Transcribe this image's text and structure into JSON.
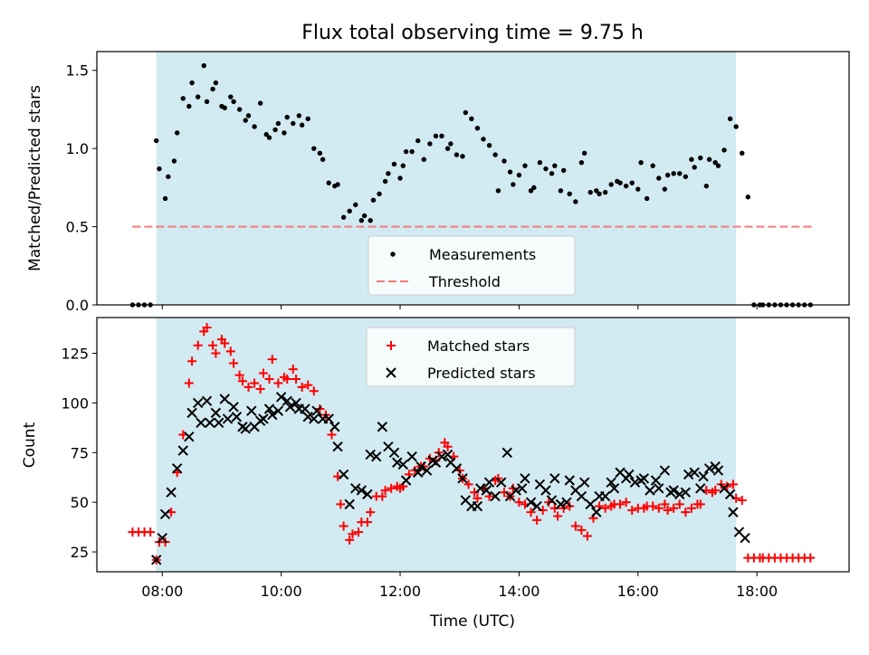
{
  "figure_title": "Flux total observing time = 9.75 h",
  "colors": {
    "shade": "#add8e6",
    "threshold": "#f08080",
    "measurements": "#000000",
    "matched": "#ff0000",
    "predicted": "#000000"
  },
  "chart_data": [
    {
      "type": "scatter",
      "title": "Flux total observing time = 9.75 h",
      "xlabel": "",
      "ylabel": "Matched/Predicted stars",
      "xlim": [
        6.9,
        19.55
      ],
      "ylim": [
        0.0,
        1.62
      ],
      "yticks": [
        0.0,
        0.5,
        1.0,
        1.5
      ],
      "ytick_labels": [
        "0.0",
        "0.5",
        "1.0",
        "1.5"
      ],
      "shaded_span": [
        7.9,
        17.65
      ],
      "threshold": {
        "name": "Threshold",
        "y": 0.5,
        "x": [
          7.5,
          18.95
        ]
      },
      "legend": {
        "placement": "lower center",
        "entries": [
          "Measurements",
          "Threshold"
        ]
      },
      "series": [
        {
          "name": "Measurements",
          "marker": "dot",
          "x": [
            7.5,
            7.6,
            7.7,
            7.8,
            7.9,
            7.95,
            8.05,
            8.1,
            8.2,
            8.25,
            8.35,
            8.45,
            8.5,
            8.6,
            8.7,
            8.75,
            8.85,
            8.9,
            9.0,
            9.05,
            9.15,
            9.2,
            9.3,
            9.4,
            9.45,
            9.55,
            9.65,
            9.75,
            9.8,
            9.9,
            9.95,
            10.05,
            10.1,
            10.2,
            10.3,
            10.35,
            10.45,
            10.55,
            10.65,
            10.7,
            10.8,
            10.9,
            10.95,
            11.05,
            11.15,
            11.25,
            11.35,
            11.4,
            11.5,
            11.55,
            11.65,
            11.75,
            11.8,
            11.9,
            12.0,
            12.05,
            12.1,
            12.2,
            12.3,
            12.4,
            12.5,
            12.6,
            12.7,
            12.8,
            12.85,
            12.95,
            13.05,
            13.1,
            13.2,
            13.3,
            13.4,
            13.5,
            13.6,
            13.65,
            13.75,
            13.85,
            13.9,
            14.0,
            14.1,
            14.2,
            14.25,
            14.35,
            14.45,
            14.55,
            14.6,
            14.7,
            14.75,
            14.85,
            14.95,
            15.05,
            15.1,
            15.2,
            15.3,
            15.35,
            15.45,
            15.55,
            15.65,
            15.7,
            15.8,
            15.9,
            16.0,
            16.05,
            16.15,
            16.25,
            16.35,
            16.45,
            16.5,
            16.6,
            16.7,
            16.8,
            16.9,
            16.95,
            17.05,
            17.15,
            17.2,
            17.3,
            17.35,
            17.45,
            17.55,
            17.65,
            17.75,
            17.85,
            17.95,
            18.05,
            18.1,
            18.2,
            18.3,
            18.4,
            18.5,
            18.6,
            18.7,
            18.8,
            18.9
          ],
          "y": [
            0,
            0,
            0,
            0,
            1.05,
            0.87,
            0.68,
            0.82,
            0.92,
            1.1,
            1.32,
            1.27,
            1.42,
            1.33,
            1.53,
            1.3,
            1.38,
            1.42,
            1.27,
            1.26,
            1.33,
            1.3,
            1.25,
            1.18,
            1.21,
            1.14,
            1.29,
            1.09,
            1.07,
            1.12,
            1.16,
            1.1,
            1.2,
            1.16,
            1.21,
            1.15,
            1.19,
            1.0,
            0.97,
            0.93,
            0.78,
            0.76,
            0.77,
            0.56,
            0.6,
            0.64,
            0.54,
            0.57,
            0.54,
            0.67,
            0.71,
            0.79,
            0.84,
            0.9,
            0.81,
            0.89,
            0.98,
            0.98,
            1.05,
            0.93,
            1.03,
            1.08,
            1.08,
            1.0,
            1.03,
            0.96,
            0.95,
            1.23,
            1.19,
            1.13,
            1.06,
            1.02,
            0.96,
            0.73,
            0.92,
            0.85,
            0.77,
            0.83,
            0.89,
            0.73,
            0.75,
            0.91,
            0.87,
            0.84,
            0.89,
            0.73,
            0.86,
            0.71,
            0.66,
            0.91,
            0.97,
            0.72,
            0.73,
            0.71,
            0.72,
            0.77,
            0.79,
            0.78,
            0.76,
            0.78,
            0.74,
            0.91,
            0.68,
            0.89,
            0.81,
            0.74,
            0.83,
            0.84,
            0.84,
            0.82,
            0.93,
            0.88,
            0.94,
            0.76,
            0.93,
            0.91,
            0.89,
            0.99,
            1.19,
            1.14,
            0.97,
            0.69,
            0,
            0,
            0,
            0,
            0,
            0,
            0,
            0,
            0,
            0,
            0
          ]
        }
      ]
    },
    {
      "type": "scatter",
      "title": "",
      "xlabel": "Time (UTC)",
      "ylabel": "Count",
      "xlim": [
        6.9,
        19.55
      ],
      "ylim": [
        15,
        143
      ],
      "xticks": [
        8,
        10,
        12,
        14,
        16,
        18
      ],
      "xtick_labels": [
        "08:00",
        "10:00",
        "12:00",
        "14:00",
        "16:00",
        "18:00"
      ],
      "yticks": [
        25,
        50,
        75,
        100,
        125
      ],
      "ytick_labels": [
        "25",
        "50",
        "75",
        "100",
        "125"
      ],
      "shaded_span": [
        7.9,
        17.65
      ],
      "legend": {
        "placement": "upper center",
        "entries": [
          "Matched stars",
          "Predicted stars"
        ]
      },
      "series": [
        {
          "name": "Matched stars",
          "marker": "plus",
          "x": [
            7.5,
            7.6,
            7.7,
            7.8,
            7.9,
            7.95,
            8.05,
            8.15,
            8.25,
            8.35,
            8.45,
            8.5,
            8.6,
            8.7,
            8.75,
            8.85,
            8.9,
            9.0,
            9.05,
            9.15,
            9.2,
            9.3,
            9.35,
            9.45,
            9.55,
            9.65,
            9.7,
            9.8,
            9.85,
            9.95,
            10.05,
            10.1,
            10.2,
            10.25,
            10.35,
            10.45,
            10.55,
            10.65,
            10.75,
            10.85,
            10.95,
            11.0,
            11.05,
            11.15,
            11.2,
            11.3,
            11.35,
            11.45,
            11.5,
            11.6,
            11.7,
            11.75,
            11.85,
            11.95,
            12.0,
            12.05,
            12.15,
            12.25,
            12.35,
            12.4,
            12.5,
            12.6,
            12.65,
            12.75,
            12.8,
            12.9,
            13.0,
            13.05,
            13.15,
            13.25,
            13.3,
            13.4,
            13.5,
            13.6,
            13.65,
            13.75,
            13.85,
            13.9,
            14.0,
            14.1,
            14.2,
            14.3,
            14.4,
            14.5,
            14.6,
            14.65,
            14.75,
            14.85,
            14.95,
            15.05,
            15.15,
            15.25,
            15.35,
            15.45,
            15.55,
            15.6,
            15.7,
            15.8,
            15.9,
            16.0,
            16.1,
            16.15,
            16.25,
            16.35,
            16.45,
            16.5,
            16.6,
            16.7,
            16.8,
            16.9,
            17.0,
            17.05,
            17.15,
            17.25,
            17.3,
            17.4,
            17.5,
            17.6,
            17.65,
            17.75,
            17.85,
            17.95,
            18.05,
            18.1,
            18.2,
            18.3,
            18.4,
            18.5,
            18.6,
            18.7,
            18.8,
            18.9
          ],
          "y": [
            35,
            35,
            35,
            35,
            21,
            30,
            30,
            45,
            65,
            84,
            110,
            121,
            129,
            136,
            138,
            129,
            125,
            132,
            130,
            126,
            120,
            114,
            111,
            108,
            110,
            107,
            115,
            112,
            122,
            110,
            113,
            112,
            117,
            112,
            108,
            109,
            106,
            97,
            94,
            84,
            63,
            49,
            38,
            31,
            34,
            35,
            40,
            40,
            45,
            53,
            53,
            56,
            57,
            58,
            57,
            58,
            64,
            66,
            68,
            68,
            72,
            71,
            75,
            80,
            78,
            73,
            66,
            62,
            59,
            55,
            52,
            57,
            53,
            61,
            62,
            55,
            53,
            57,
            50,
            49,
            45,
            41,
            46,
            50,
            47,
            43,
            47,
            48,
            38,
            36,
            33,
            42,
            48,
            47,
            48,
            49,
            49,
            50,
            46,
            47,
            47,
            48,
            48,
            47,
            49,
            46,
            47,
            49,
            45,
            47,
            49,
            49,
            56,
            55,
            56,
            59,
            58,
            59,
            52,
            51,
            22,
            22,
            22,
            22,
            22,
            22,
            22,
            22,
            22,
            22,
            22,
            22
          ]
        },
        {
          "name": "Predicted stars",
          "marker": "x",
          "x": [
            7.9,
            8.0,
            8.05,
            8.15,
            8.25,
            8.35,
            8.45,
            8.5,
            8.6,
            8.65,
            8.75,
            8.8,
            8.9,
            8.95,
            9.05,
            9.1,
            9.2,
            9.25,
            9.35,
            9.4,
            9.5,
            9.55,
            9.65,
            9.7,
            9.8,
            9.85,
            9.95,
            10.0,
            10.1,
            10.15,
            10.25,
            10.3,
            10.4,
            10.45,
            10.55,
            10.6,
            10.7,
            10.8,
            10.9,
            10.95,
            11.05,
            11.15,
            11.25,
            11.35,
            11.45,
            11.5,
            11.6,
            11.7,
            11.8,
            11.9,
            11.95,
            12.05,
            12.1,
            12.2,
            12.3,
            12.35,
            12.45,
            12.55,
            12.6,
            12.7,
            12.8,
            12.85,
            12.95,
            13.05,
            13.1,
            13.2,
            13.3,
            13.35,
            13.45,
            13.5,
            13.6,
            13.7,
            13.8,
            13.85,
            13.95,
            14.05,
            14.1,
            14.2,
            14.3,
            14.35,
            14.45,
            14.55,
            14.6,
            14.7,
            14.8,
            14.85,
            14.95,
            15.05,
            15.1,
            15.2,
            15.3,
            15.35,
            15.45,
            15.55,
            15.6,
            15.7,
            15.8,
            15.85,
            15.95,
            16.05,
            16.1,
            16.2,
            16.3,
            16.35,
            16.45,
            16.55,
            16.6,
            16.7,
            16.8,
            16.85,
            16.95,
            17.05,
            17.1,
            17.2,
            17.3,
            17.35,
            17.45,
            17.55,
            17.6,
            17.7,
            17.8
          ],
          "y": [
            21,
            32,
            44,
            55,
            67,
            76,
            83,
            95,
            100,
            90,
            101,
            90,
            95,
            90,
            102,
            92,
            98,
            93,
            88,
            87,
            96,
            88,
            91,
            92,
            97,
            94,
            96,
            103,
            101,
            98,
            100,
            97,
            97,
            93,
            92,
            96,
            92,
            92,
            88,
            78,
            64,
            49,
            57,
            56,
            54,
            74,
            73,
            88,
            78,
            75,
            70,
            69,
            61,
            73,
            65,
            68,
            66,
            71,
            70,
            73,
            74,
            70,
            67,
            62,
            51,
            48,
            48,
            57,
            56,
            60,
            53,
            60,
            75,
            53,
            56,
            57,
            62,
            50,
            48,
            59,
            56,
            51,
            62,
            49,
            50,
            61,
            56,
            53,
            60,
            49,
            45,
            53,
            53,
            60,
            57,
            65,
            62,
            64,
            60,
            61,
            62,
            56,
            61,
            57,
            66,
            55,
            56,
            54,
            55,
            64,
            65,
            57,
            63,
            67,
            68,
            66,
            57,
            54,
            45,
            35,
            32
          ]
        }
      ]
    }
  ]
}
